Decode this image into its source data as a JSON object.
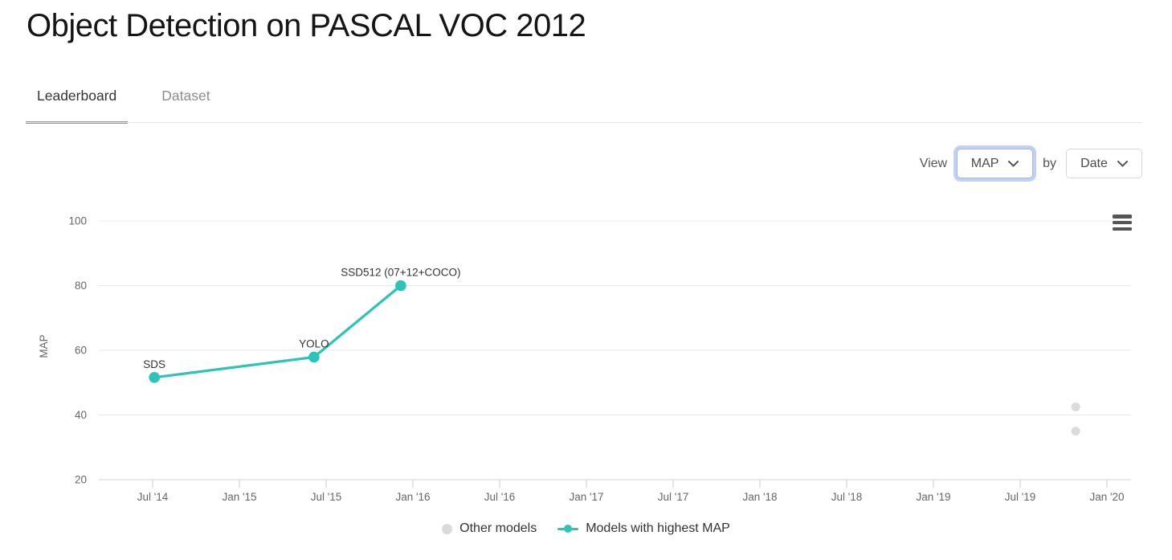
{
  "header": {
    "title": "Object Detection on PASCAL VOC 2012"
  },
  "tabs": {
    "leaderboard": "Leaderboard",
    "dataset": "Dataset"
  },
  "controls": {
    "view_label": "View",
    "metric_value": "MAP",
    "by_label": "by",
    "sort_value": "Date"
  },
  "legend": {
    "other_models": "Other models",
    "highest_map": "Models with highest MAP"
  },
  "colors": {
    "accent_teal": "#2cc3b9",
    "other_models_gray": "#dbdbdb",
    "gridline": "#e8e8e8",
    "axis_line": "#d6d6d6",
    "tick_text": "#666666",
    "point_label_text": "#333333"
  },
  "chart_data": {
    "type": "line",
    "title": "",
    "xlabel": "",
    "ylabel": "MAP",
    "ylim": [
      20,
      100
    ],
    "yticks": [
      100,
      80,
      60,
      40,
      20
    ],
    "grid": true,
    "legend_position": "bottom",
    "xticks": [
      {
        "label": "Jul '14",
        "year": 2014.5
      },
      {
        "label": "Jan '15",
        "year": 2015.0
      },
      {
        "label": "Jul '15",
        "year": 2015.5
      },
      {
        "label": "Jan '16",
        "year": 2016.0
      },
      {
        "label": "Jul '16",
        "year": 2016.5
      },
      {
        "label": "Jan '17",
        "year": 2017.0
      },
      {
        "label": "Jul '17",
        "year": 2017.5
      },
      {
        "label": "Jan '18",
        "year": 2018.0
      },
      {
        "label": "Jul '18",
        "year": 2018.5
      },
      {
        "label": "Jan '19",
        "year": 2019.0
      },
      {
        "label": "Jul '19",
        "year": 2019.5
      },
      {
        "label": "Jan '20",
        "year": 2020.0
      }
    ],
    "series": [
      {
        "name": "Models with highest MAP",
        "type": "line-with-markers",
        "color": "#2cc3b9",
        "points": [
          {
            "label": "SDS",
            "date": "Jul 2014",
            "year": 2014.51,
            "map": 51.6
          },
          {
            "label": "YOLO",
            "date": "Jun 2015",
            "year": 2015.43,
            "map": 57.9
          },
          {
            "label": "SSD512 (07+12+COCO)",
            "date": "Dec 2015",
            "year": 2015.93,
            "map": 80.0
          }
        ]
      },
      {
        "name": "Other models",
        "type": "scatter",
        "color": "#dbdbdb",
        "points": [
          {
            "label": "",
            "date": "Oct 2019",
            "year": 2019.82,
            "map": 42.5
          },
          {
            "label": "",
            "date": "Oct 2019",
            "year": 2019.82,
            "map": 35.0
          }
        ]
      }
    ]
  }
}
